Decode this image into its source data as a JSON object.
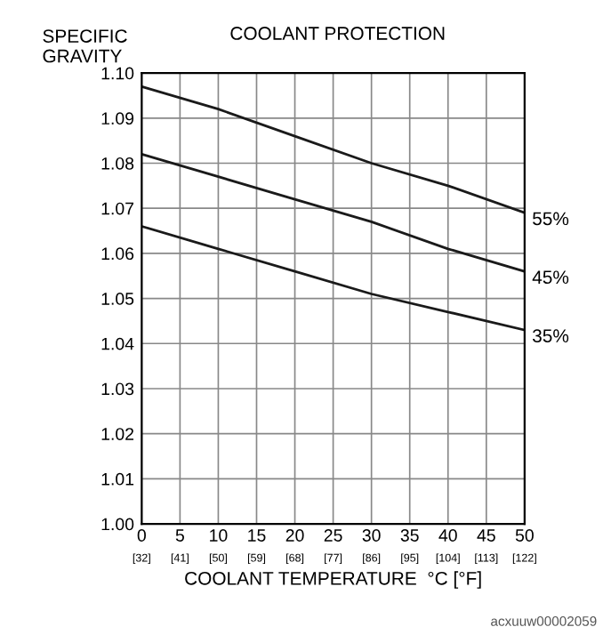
{
  "chart_data": {
    "type": "line",
    "title": "COOLANT PROTECTION",
    "ylabel": "SPECIFIC\nGRAVITY",
    "xlabel": "COOLANT TEMPERATURE  °C [°F]",
    "x": [
      0,
      10,
      20,
      30,
      40,
      50
    ],
    "series": [
      {
        "name": "55%",
        "color": "#1a1a1a",
        "values": [
          1.097,
          1.092,
          1.086,
          1.08,
          1.075,
          1.069
        ]
      },
      {
        "name": "45%",
        "color": "#1a1a1a",
        "values": [
          1.082,
          1.077,
          1.072,
          1.067,
          1.061,
          1.056
        ]
      },
      {
        "name": "35%",
        "color": "#1a1a1a",
        "values": [
          1.066,
          1.061,
          1.056,
          1.051,
          1.047,
          1.043
        ]
      }
    ],
    "xlim": [
      0,
      50
    ],
    "ylim": [
      1.0,
      1.1
    ],
    "xticks": [
      0,
      5,
      10,
      15,
      20,
      25,
      30,
      35,
      40,
      45,
      50
    ],
    "x2lim": [
      32,
      122
    ],
    "x2ticks": [
      {
        "value": 32,
        "label": "[32]"
      },
      {
        "value": 41,
        "label": "[41]"
      },
      {
        "value": 50,
        "label": "[50]"
      },
      {
        "value": 59,
        "label": "[59]"
      },
      {
        "value": 68,
        "label": "[68]"
      },
      {
        "value": 77,
        "label": "[77]"
      },
      {
        "value": 86,
        "label": "[86]"
      },
      {
        "value": 95,
        "label": "[95]"
      },
      {
        "value": 104,
        "label": "[104]"
      },
      {
        "value": 113,
        "label": "[113]"
      },
      {
        "value": 122,
        "label": "[122]"
      }
    ],
    "yticks": [
      {
        "value": 1.0,
        "label": "1.00"
      },
      1.01,
      1.02,
      1.03,
      1.04,
      1.05,
      1.06,
      1.07,
      1.08,
      1.09,
      {
        "value": 1.1,
        "label": "1.10"
      }
    ],
    "grid": true,
    "legend": false,
    "marker": "none",
    "line_style": "solid",
    "annotations": [
      "acxuuw00002059"
    ]
  }
}
